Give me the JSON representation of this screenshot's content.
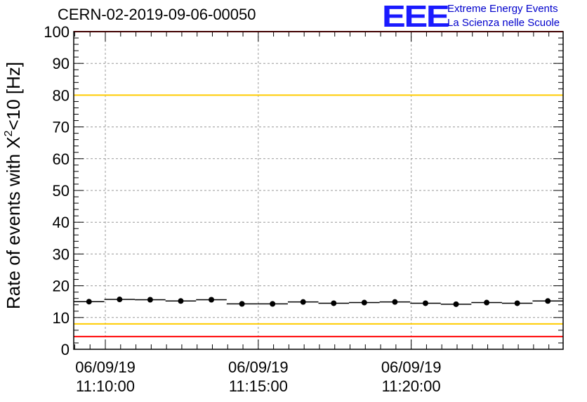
{
  "header": {
    "title": "CERN-02-2019-09-06-00050",
    "logo_text": "EEE",
    "logo_line1": "Extreme Energy Events",
    "logo_line2": "La Scienza nelle Scuole"
  },
  "colors": {
    "logo": "#1a1aff",
    "red_limit": "#ff0000",
    "yellow_limit": "#ffcc00",
    "grid": "#999999",
    "data": "#000000"
  },
  "chart_data": {
    "type": "scatter",
    "title": "CERN-02-2019-09-06-00050",
    "ylabel_parts": {
      "pre": "Rate of events with X",
      "sup": "2",
      "post": "<10 [Hz]"
    },
    "ylim": [
      0,
      100
    ],
    "yticks": [
      0,
      10,
      20,
      30,
      40,
      50,
      60,
      70,
      80,
      90,
      100
    ],
    "xlim": [
      "11:08:58",
      "11:24:58"
    ],
    "xticks": [
      {
        "t": "11:10:00",
        "date": "06/09/19",
        "time": "11:10:00"
      },
      {
        "t": "11:15:00",
        "date": "06/09/19",
        "time": "11:15:00"
      },
      {
        "t": "11:20:00",
        "date": "06/09/19",
        "time": "11:20:00"
      }
    ],
    "grid": true,
    "reference_lines": [
      {
        "y": 100,
        "color": "red"
      },
      {
        "y": 80,
        "color": "yellow"
      },
      {
        "y": 8,
        "color": "yellow"
      },
      {
        "y": 4,
        "color": "red"
      }
    ],
    "series": [
      {
        "points": [
          {
            "x": "11:09:28",
            "y": 15.0
          },
          {
            "x": "11:10:28",
            "y": 15.7
          },
          {
            "x": "11:11:28",
            "y": 15.6
          },
          {
            "x": "11:12:28",
            "y": 15.2
          },
          {
            "x": "11:13:28",
            "y": 15.6
          },
          {
            "x": "11:14:28",
            "y": 14.3
          },
          {
            "x": "11:15:28",
            "y": 14.3
          },
          {
            "x": "11:16:28",
            "y": 14.9
          },
          {
            "x": "11:17:28",
            "y": 14.5
          },
          {
            "x": "11:18:28",
            "y": 14.7
          },
          {
            "x": "11:19:28",
            "y": 14.9
          },
          {
            "x": "11:20:28",
            "y": 14.5
          },
          {
            "x": "11:21:28",
            "y": 14.2
          },
          {
            "x": "11:22:28",
            "y": 14.7
          },
          {
            "x": "11:23:28",
            "y": 14.5
          },
          {
            "x": "11:24:28",
            "y": 15.2
          }
        ]
      }
    ]
  }
}
